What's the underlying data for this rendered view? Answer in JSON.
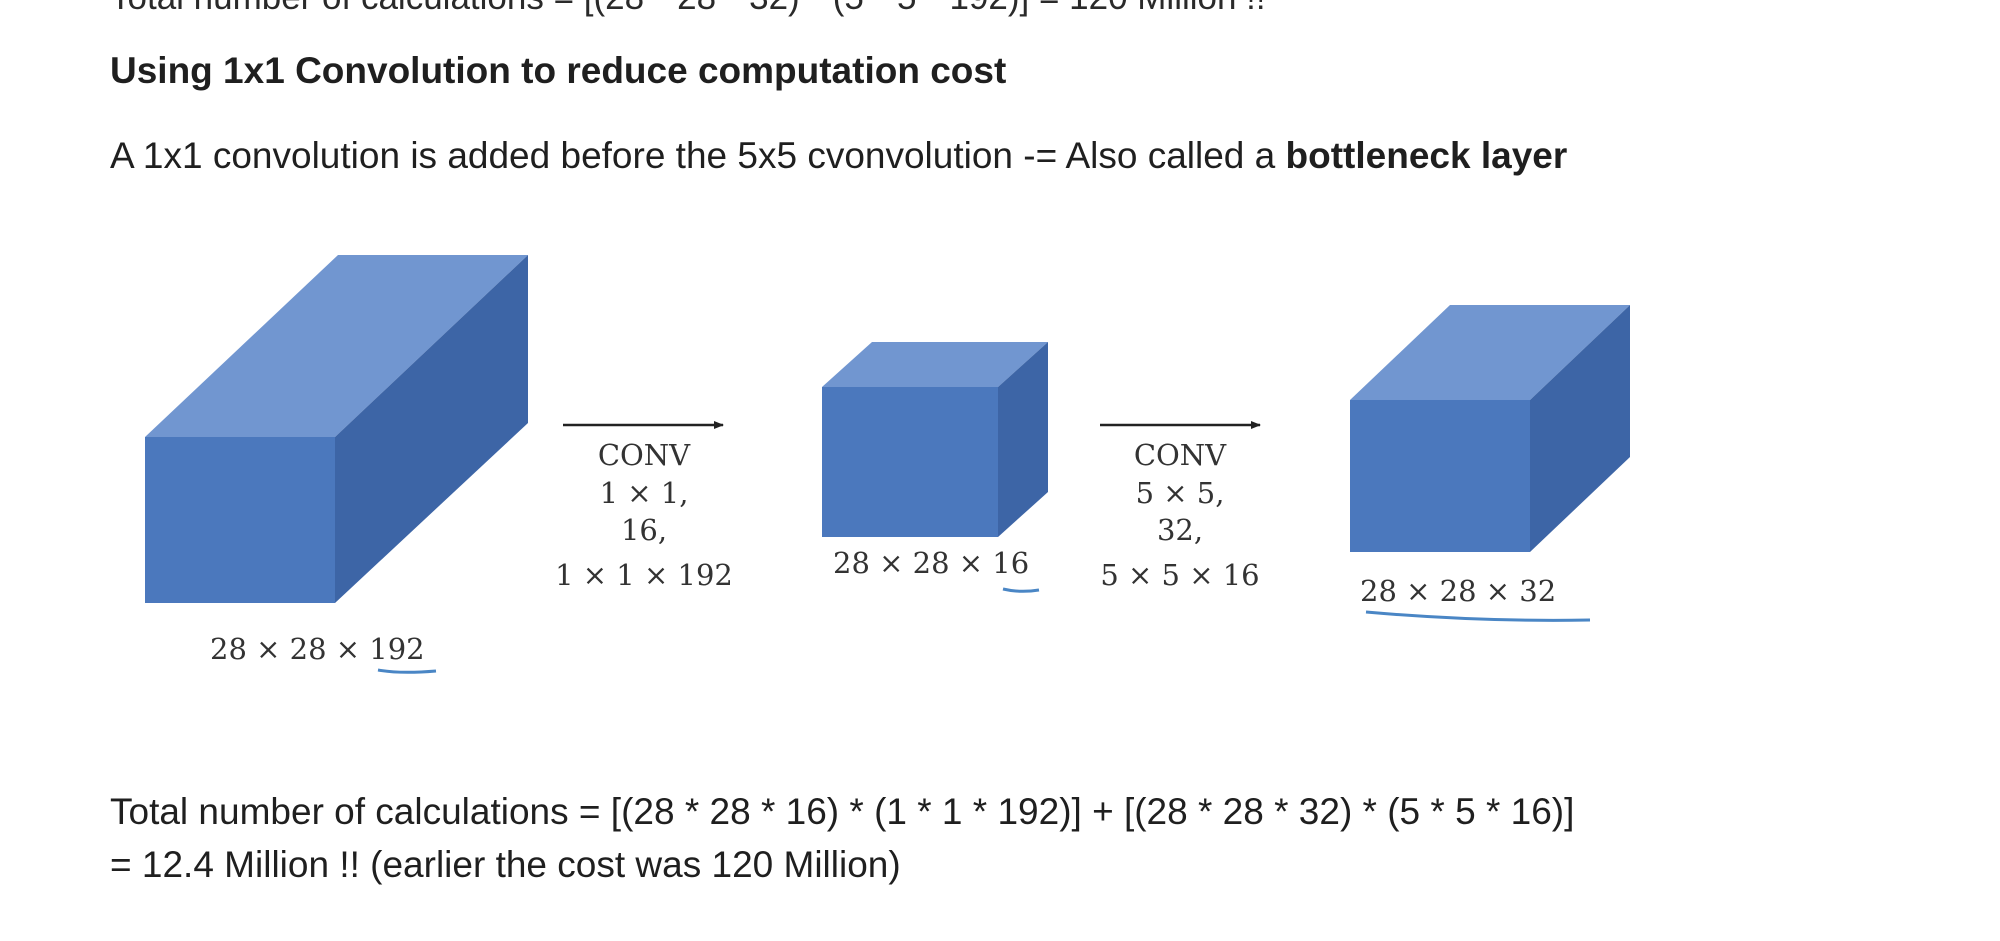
{
  "cutoff_text": "Total number of calculations = [(28 * 28 * 32) * (5 * 5 * 192)] = 120 Million !!",
  "heading": "Using 1x1 Convolution to reduce computation cost",
  "intro": {
    "text": "A 1x1 convolution is added before the 5x5 cvonvolution -= Also called a ",
    "bold": "bottleneck layer"
  },
  "diagram": {
    "volume_1": {
      "label_prefix": "28 × 28 × ",
      "label_underlined": "192"
    },
    "conv_1": {
      "lines": [
        "CONV",
        "1 × 1,",
        "16,",
        "1 × 1 × 192"
      ]
    },
    "volume_2": {
      "label_prefix": "28 × 28 × ",
      "label_underlined": "16"
    },
    "conv_2": {
      "lines": [
        "CONV",
        "5 × 5,",
        "32,",
        "5 × 5 × 16"
      ]
    },
    "volume_3": {
      "label": "28 × 28 × 32"
    },
    "colors": {
      "front": "#4b78bd",
      "top": "#7196d0",
      "side": "#3d65a6",
      "underline": "#4a86c5"
    }
  },
  "calculation": {
    "line1": "Total number of calculations = [(28 * 28 * 16) * (1 * 1 * 192)] + [(28 * 28 * 32) * (5 * 5 * 16)]",
    "line2": "= 12.4 Million !! (earlier the cost was 120 Million)"
  }
}
